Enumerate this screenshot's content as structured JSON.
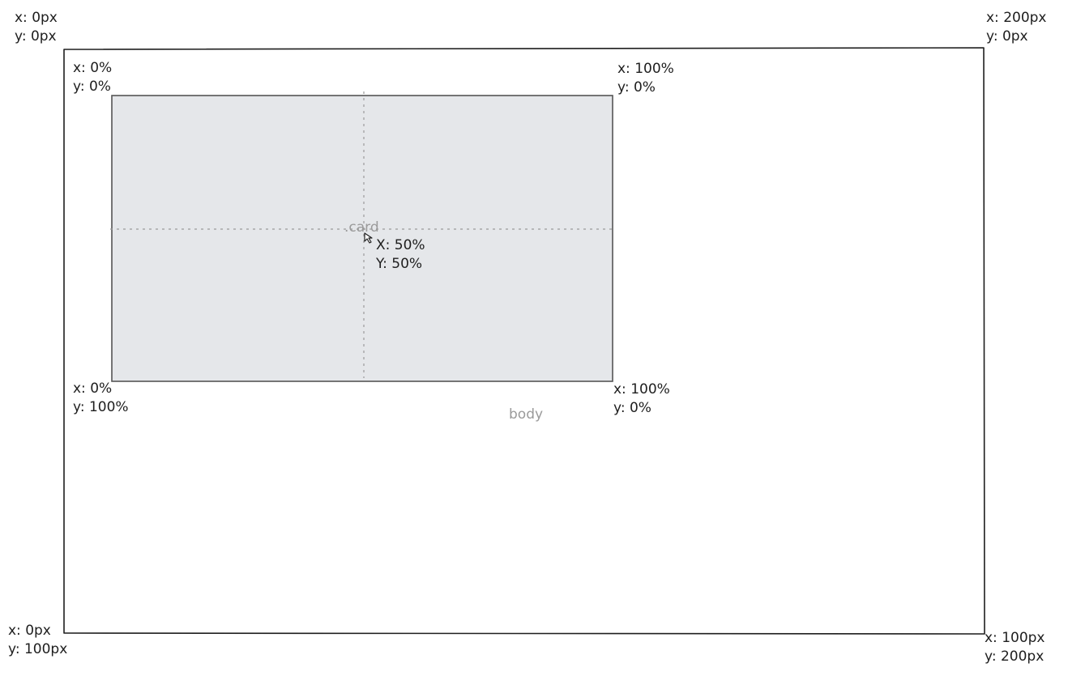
{
  "body_frame": {
    "name": "body",
    "corners": {
      "top_left": {
        "x": "x: 0px",
        "y": "y: 0px"
      },
      "top_right": {
        "x": "x: 200px",
        "y": "y: 0px"
      },
      "bottom_left": {
        "x": "x: 0px",
        "y": "y: 100px"
      },
      "bottom_right": {
        "x": "x: 100px",
        "y": "y: 200px"
      }
    }
  },
  "card": {
    "name": ".card",
    "fill": "#e5e7ea",
    "corners": {
      "top_left": {
        "x": "x: 0%",
        "y": "y: 0%"
      },
      "top_right": {
        "x": "x: 100%",
        "y": "y: 0%"
      },
      "bottom_left": {
        "x": "x: 0%",
        "y": "y: 100%"
      },
      "bottom_right": {
        "x": "x: 100%",
        "y": "y: 0%"
      }
    },
    "center": {
      "x": "X: 50%",
      "y": "Y: 50%"
    }
  },
  "colors": {
    "stroke": "#1e1e1e",
    "card_stroke": "#555555",
    "guide": "#9a9a9a",
    "label_grey": "#9a9a9a"
  },
  "icons": {
    "cursor": "cursor-arrow-icon"
  }
}
